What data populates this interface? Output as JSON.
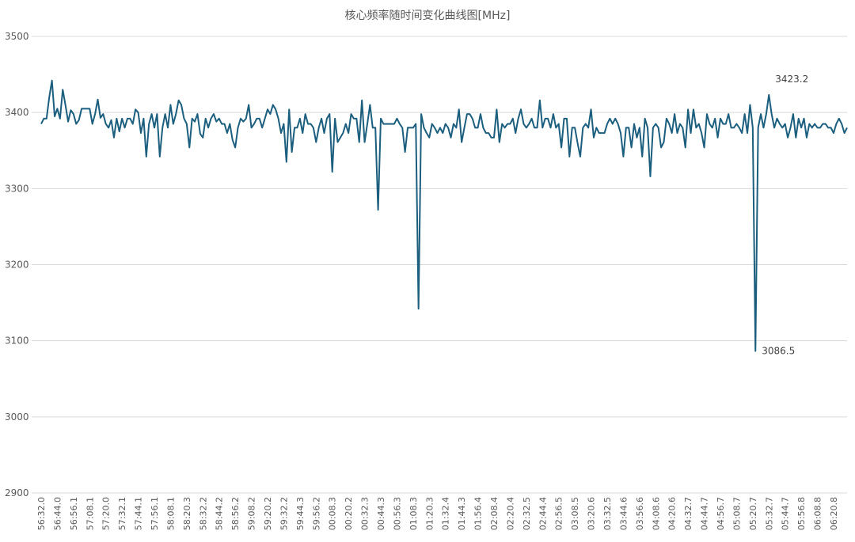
{
  "chart_data": {
    "type": "line",
    "title": "核心频率随时间变化曲线图[MHz]",
    "categories": [
      "56:32.0",
      null,
      null,
      null,
      null,
      null,
      "56:44.0",
      null,
      null,
      null,
      null,
      null,
      "56:56.1",
      null,
      null,
      null,
      null,
      null,
      "57:08.1",
      null,
      null,
      null,
      null,
      null,
      "57:20.0",
      null,
      null,
      null,
      null,
      null,
      "57:32.1",
      null,
      null,
      null,
      null,
      null,
      "57:44.1",
      null,
      null,
      null,
      null,
      null,
      "57:56.1",
      null,
      null,
      null,
      null,
      null,
      "58:08.1",
      null,
      null,
      null,
      null,
      null,
      "58:20.3",
      null,
      null,
      null,
      null,
      null,
      "58:32.2",
      null,
      null,
      null,
      null,
      null,
      "58:44.2",
      null,
      null,
      null,
      null,
      null,
      "58:56.2",
      null,
      null,
      null,
      null,
      null,
      "59:08.2",
      null,
      null,
      null,
      null,
      null,
      "59:20.2",
      null,
      null,
      null,
      null,
      null,
      "59:32.2",
      null,
      null,
      null,
      null,
      null,
      "59:44.3",
      null,
      null,
      null,
      null,
      null,
      "59:56.2",
      null,
      null,
      null,
      null,
      null,
      "00:08.3",
      null,
      null,
      null,
      null,
      null,
      "00:20.2",
      null,
      null,
      null,
      null,
      null,
      "00:32.3",
      null,
      null,
      null,
      null,
      null,
      "00:44.3",
      null,
      null,
      null,
      null,
      null,
      "00:56.3",
      null,
      null,
      null,
      null,
      null,
      "01:08.3",
      null,
      null,
      null,
      null,
      null,
      "01:20.3",
      null,
      null,
      null,
      null,
      null,
      "01:32.4",
      null,
      null,
      null,
      null,
      null,
      "01:44.3",
      null,
      null,
      null,
      null,
      null,
      "01:56.4",
      null,
      null,
      null,
      null,
      null,
      "02:08.4",
      null,
      null,
      null,
      null,
      null,
      "02:20.4",
      null,
      null,
      null,
      null,
      null,
      "02:32.5",
      null,
      null,
      null,
      null,
      null,
      "02:44.4",
      null,
      null,
      null,
      null,
      null,
      "02:56.5",
      null,
      null,
      null,
      null,
      null,
      "03:08.5",
      null,
      null,
      null,
      null,
      null,
      "03:20.6",
      null,
      null,
      null,
      null,
      null,
      "03:32.5",
      null,
      null,
      null,
      null,
      null,
      "03:44.6",
      null,
      null,
      null,
      null,
      null,
      "03:56.6",
      null,
      null,
      null,
      null,
      null,
      "04:08.6",
      null,
      null,
      null,
      null,
      null,
      "04:20.6",
      null,
      null,
      null,
      null,
      null,
      "04:32.7",
      null,
      null,
      null,
      null,
      null,
      "04:44.7",
      null,
      null,
      null,
      null,
      null,
      "04:56.7",
      null,
      null,
      null,
      null,
      null,
      "05:08.7",
      null,
      null,
      null,
      null,
      null,
      "05:20.7",
      null,
      null,
      null,
      null,
      null,
      "05:32.7",
      null,
      null,
      null,
      null,
      null,
      "05:44.7",
      null,
      null,
      null,
      null,
      null,
      "05:56.8",
      null,
      null,
      null,
      null,
      null,
      "06:08.8",
      null,
      null,
      null,
      null,
      null,
      "06:20.8",
      null,
      null,
      null,
      null,
      null
    ],
    "series": [
      {
        "name": "核心频率",
        "color": "#1b5e7e",
        "values": [
          3385,
          3392,
          3392,
          3420,
          3442,
          3395,
          3405,
          3392,
          3430,
          3410,
          3388,
          3403,
          3398,
          3385,
          3390,
          3405,
          3405,
          3405,
          3405,
          3385,
          3398,
          3417,
          3393,
          3398,
          3385,
          3380,
          3390,
          3367,
          3392,
          3375,
          3392,
          3380,
          3392,
          3392,
          3385,
          3404,
          3400,
          3373,
          3392,
          3342,
          3385,
          3398,
          3380,
          3398,
          3342,
          3380,
          3398,
          3380,
          3410,
          3385,
          3398,
          3416,
          3410,
          3392,
          3385,
          3354,
          3392,
          3388,
          3398,
          3372,
          3367,
          3392,
          3380,
          3392,
          3398,
          3388,
          3392,
          3385,
          3385,
          3373,
          3385,
          3364,
          3354,
          3380,
          3392,
          3388,
          3392,
          3410,
          3380,
          3385,
          3392,
          3392,
          3380,
          3392,
          3404,
          3398,
          3410,
          3404,
          3392,
          3373,
          3385,
          3335,
          3404,
          3348,
          3380,
          3380,
          3392,
          3373,
          3398,
          3385,
          3385,
          3380,
          3361,
          3380,
          3392,
          3373,
          3392,
          3398,
          3322,
          3392,
          3361,
          3367,
          3373,
          3385,
          3373,
          3398,
          3392,
          3392,
          3361,
          3416,
          3361,
          3385,
          3410,
          3380,
          3380,
          3272,
          3392,
          3385,
          3385,
          3385,
          3385,
          3385,
          3392,
          3385,
          3380,
          3348,
          3380,
          3380,
          3380,
          3385,
          3142,
          3398,
          3380,
          3373,
          3367,
          3385,
          3380,
          3373,
          3380,
          3373,
          3385,
          3380,
          3367,
          3385,
          3380,
          3404,
          3361,
          3380,
          3398,
          3398,
          3392,
          3380,
          3380,
          3398,
          3380,
          3373,
          3373,
          3367,
          3367,
          3404,
          3361,
          3385,
          3380,
          3385,
          3385,
          3392,
          3373,
          3392,
          3404,
          3385,
          3380,
          3385,
          3392,
          3380,
          3380,
          3416,
          3380,
          3392,
          3392,
          3380,
          3398,
          3380,
          3385,
          3354,
          3392,
          3392,
          3342,
          3380,
          3380,
          3360,
          3342,
          3380,
          3385,
          3380,
          3404,
          3367,
          3380,
          3373,
          3373,
          3373,
          3385,
          3392,
          3385,
          3392,
          3385,
          3373,
          3342,
          3380,
          3380,
          3354,
          3385,
          3367,
          3380,
          3342,
          3392,
          3380,
          3316,
          3380,
          3385,
          3380,
          3354,
          3361,
          3392,
          3385,
          3373,
          3398,
          3373,
          3385,
          3380,
          3354,
          3404,
          3373,
          3404,
          3380,
          3385,
          3373,
          3354,
          3398,
          3385,
          3380,
          3392,
          3367,
          3392,
          3385,
          3385,
          3398,
          3380,
          3380,
          3385,
          3380,
          3373,
          3398,
          3373,
          3410,
          3380,
          3086.5,
          3380,
          3398,
          3380,
          3398,
          3423.2,
          3398,
          3380,
          3392,
          3385,
          3380,
          3385,
          3367,
          3380,
          3398,
          3367,
          3392,
          3380,
          3392,
          3367,
          3385,
          3380,
          3385,
          3380,
          3380,
          3385,
          3385,
          3380,
          3380,
          3373,
          3385,
          3392,
          3385,
          3373,
          3380
        ]
      }
    ],
    "data_labels": {
      "265": "3086.5",
      "270": "3423.2"
    },
    "ylim": [
      2900,
      3500
    ],
    "yticks": [
      2900,
      3000,
      3100,
      3200,
      3300,
      3400,
      3500
    ],
    "grid": true
  }
}
